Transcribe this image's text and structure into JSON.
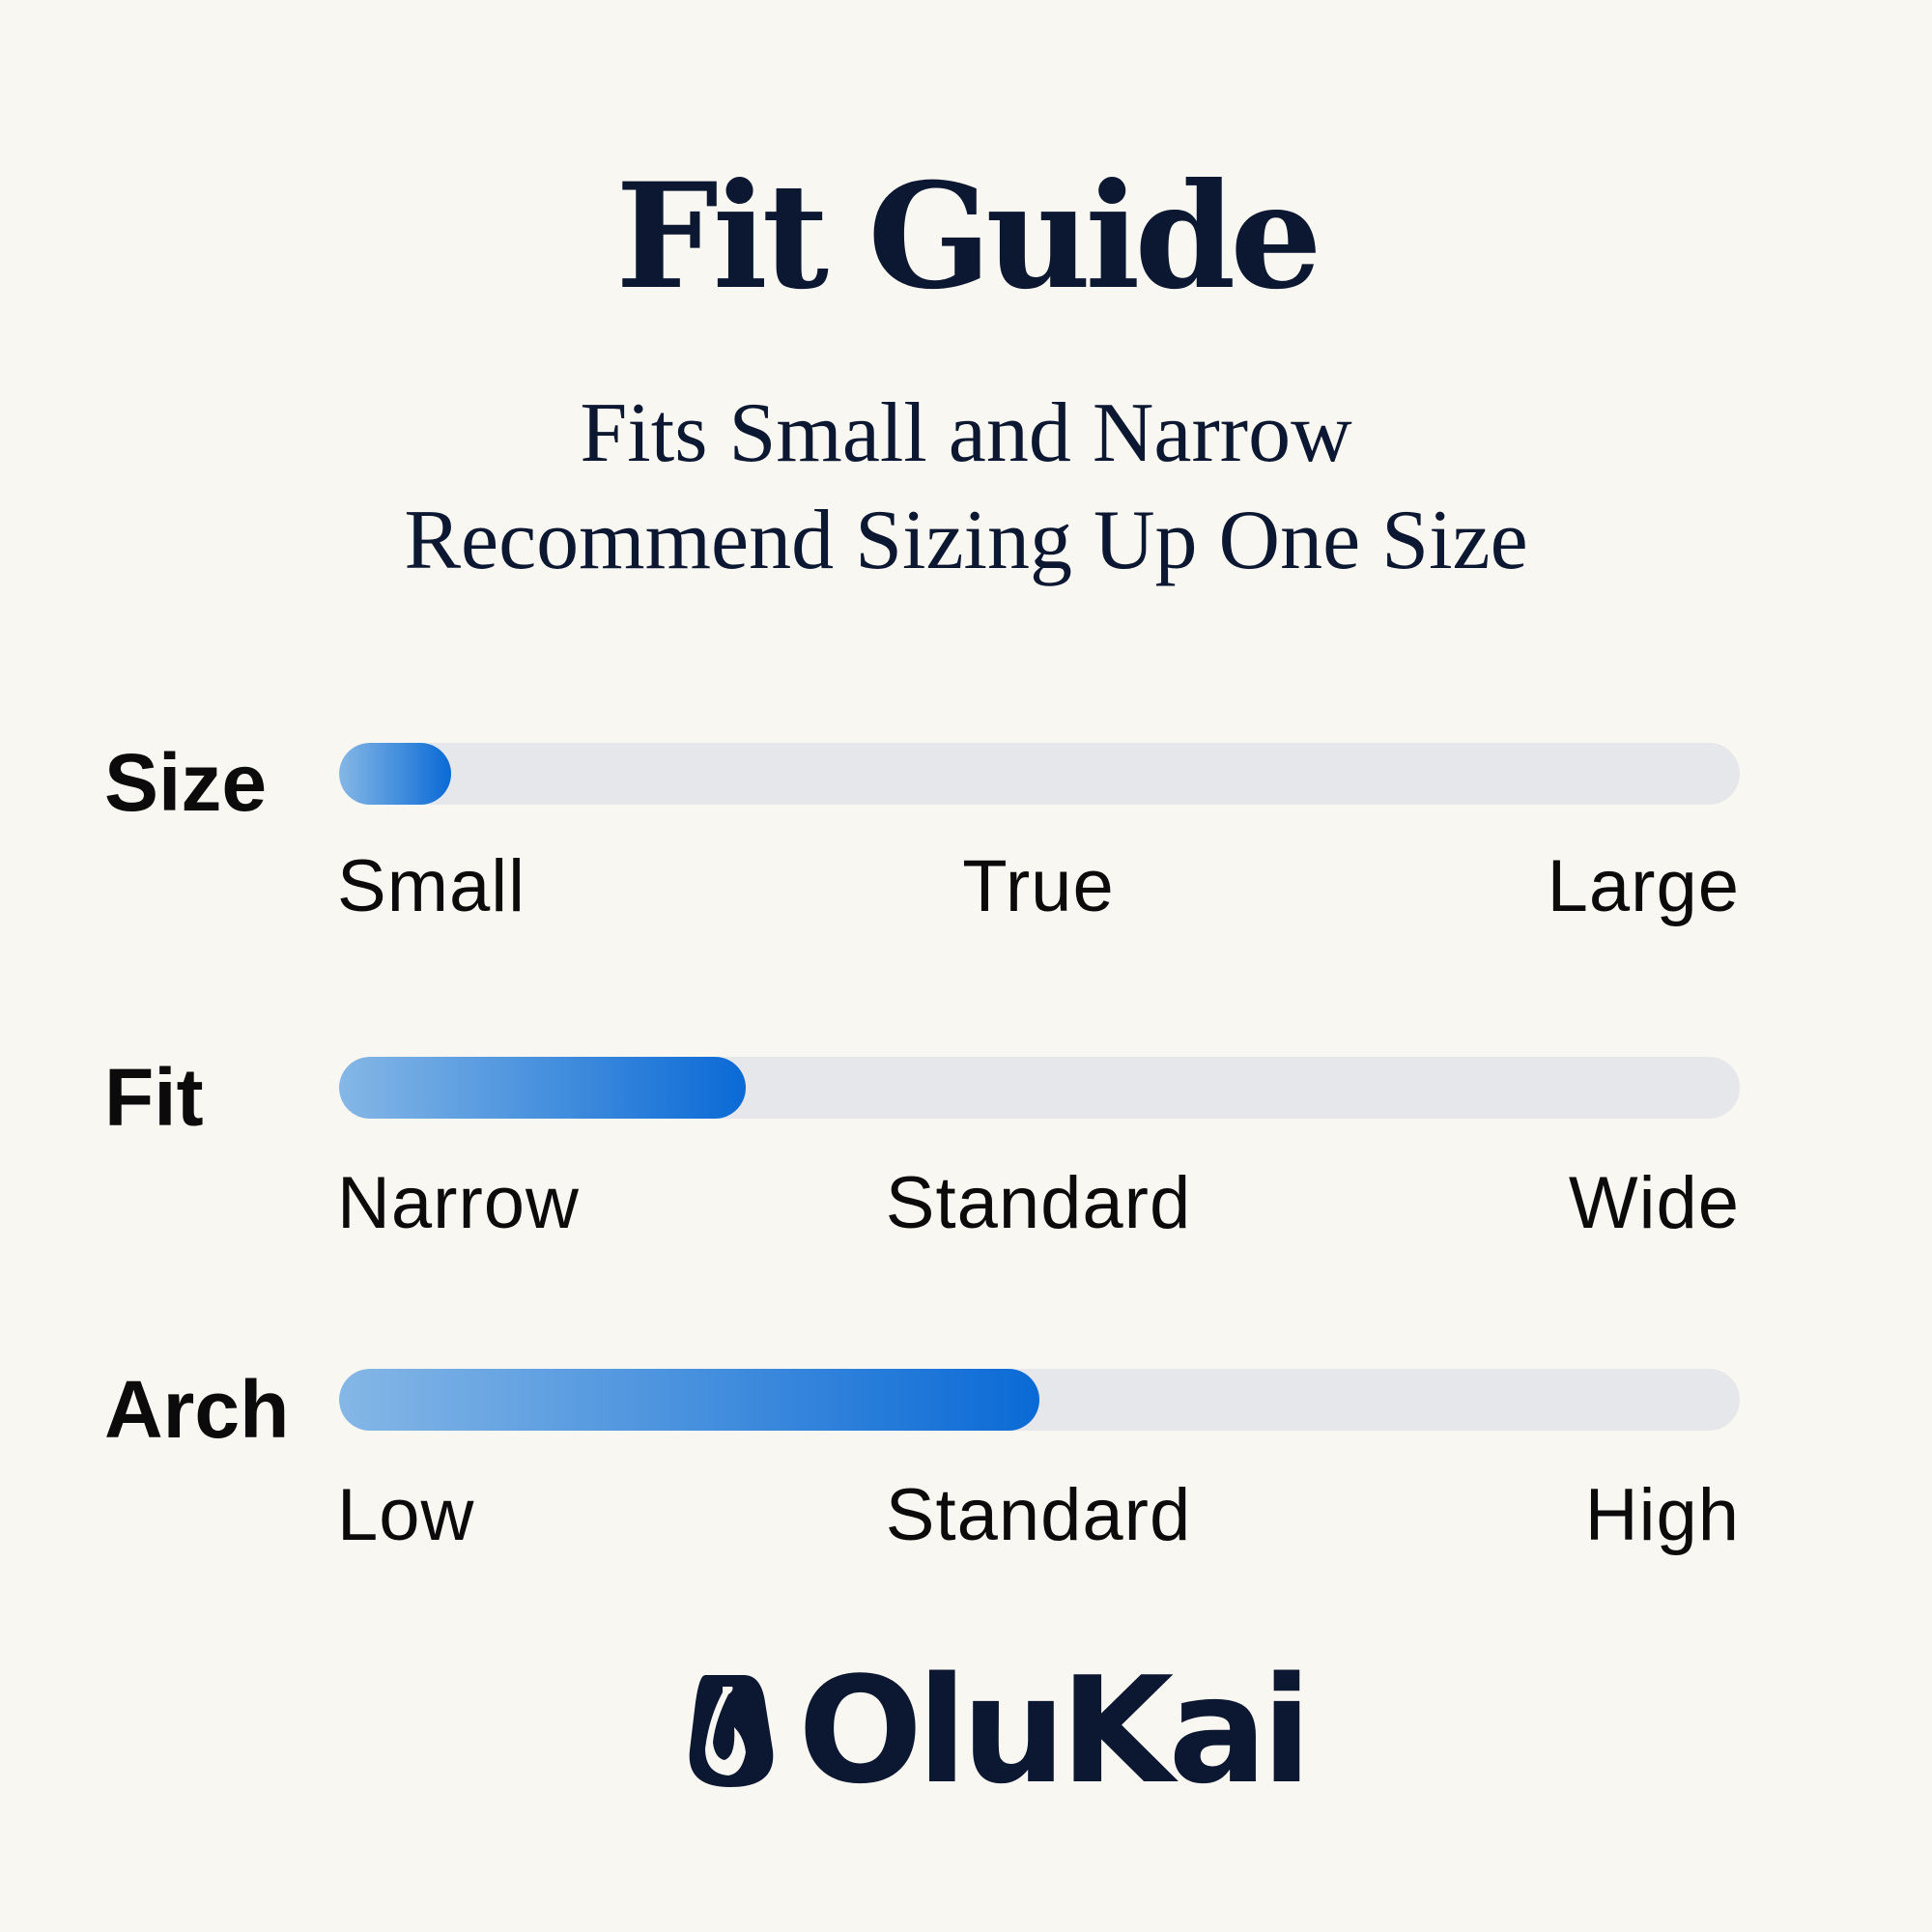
{
  "title": "Fit Guide",
  "subtitle": [
    "Fits Small and Narrow",
    "Recommend Sizing Up One Size"
  ],
  "colors": {
    "background": "#f9f7f1",
    "navy": "#0c1731",
    "track": "#e5e7eb",
    "fill_start": "#85b7e6",
    "fill_end": "#0a6ad6"
  },
  "scales": [
    {
      "label": "Size",
      "level": 0.08,
      "ticks": [
        "Small",
        "True",
        "Large"
      ]
    },
    {
      "label": "Fit",
      "level": 0.29,
      "ticks": [
        "Narrow",
        "Standard",
        "Wide"
      ]
    },
    {
      "label": "Arch",
      "level": 0.5,
      "ticks": [
        "Low",
        "Standard",
        "High"
      ]
    }
  ],
  "logo": {
    "text": "OluKai",
    "icon": "fishhook-icon"
  }
}
